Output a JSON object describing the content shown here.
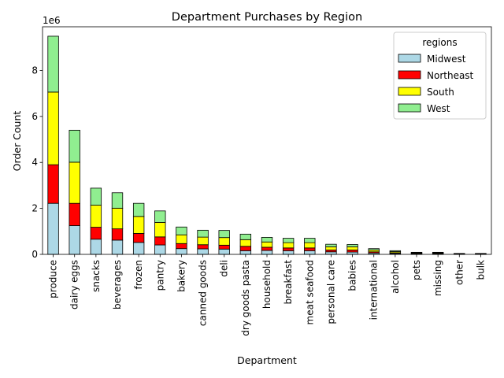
{
  "chart_data": {
    "type": "bar",
    "stacked": true,
    "title": "Department Purchases by Region",
    "xlabel": "Department",
    "ylabel": "Order Count",
    "y_offset_label": "1e6",
    "ylim": [
      0,
      9.9
    ],
    "y_unit_multiplier": 1000000,
    "yticks": [
      0,
      2,
      4,
      6,
      8
    ],
    "grid": false,
    "legend": {
      "title": "regions",
      "placement": "top-right"
    },
    "categories": [
      "produce",
      "dairy eggs",
      "snacks",
      "beverages",
      "frozen",
      "pantry",
      "bakery",
      "canned goods",
      "deli",
      "dry goods pasta",
      "household",
      "breakfast",
      "meat seafood",
      "personal care",
      "babies",
      "international",
      "alcohol",
      "pets",
      "missing",
      "other",
      "bulk"
    ],
    "series": [
      {
        "name": "Midwest",
        "color": "#add8e6",
        "values": [
          2.22,
          1.25,
          0.66,
          0.62,
          0.52,
          0.41,
          0.25,
          0.24,
          0.23,
          0.16,
          0.17,
          0.16,
          0.16,
          0.11,
          0.1,
          0.06,
          0.04,
          0.02,
          0.02,
          0.01,
          0.01
        ]
      },
      {
        "name": "Northeast",
        "color": "#ff0000",
        "values": [
          1.68,
          0.97,
          0.52,
          0.49,
          0.39,
          0.35,
          0.22,
          0.18,
          0.17,
          0.19,
          0.14,
          0.12,
          0.12,
          0.08,
          0.09,
          0.05,
          0.03,
          0.02,
          0.02,
          0.01,
          0.01
        ]
      },
      {
        "name": "South",
        "color": "#ffff00",
        "values": [
          3.16,
          1.79,
          0.96,
          0.9,
          0.74,
          0.63,
          0.38,
          0.33,
          0.33,
          0.29,
          0.23,
          0.23,
          0.23,
          0.14,
          0.14,
          0.08,
          0.05,
          0.03,
          0.03,
          0.01,
          0.01
        ]
      },
      {
        "name": "West",
        "color": "#90ee90",
        "values": [
          2.43,
          1.39,
          0.74,
          0.67,
          0.57,
          0.5,
          0.34,
          0.3,
          0.31,
          0.24,
          0.2,
          0.19,
          0.19,
          0.11,
          0.1,
          0.06,
          0.04,
          0.02,
          0.02,
          0.01,
          0.01
        ]
      }
    ]
  }
}
